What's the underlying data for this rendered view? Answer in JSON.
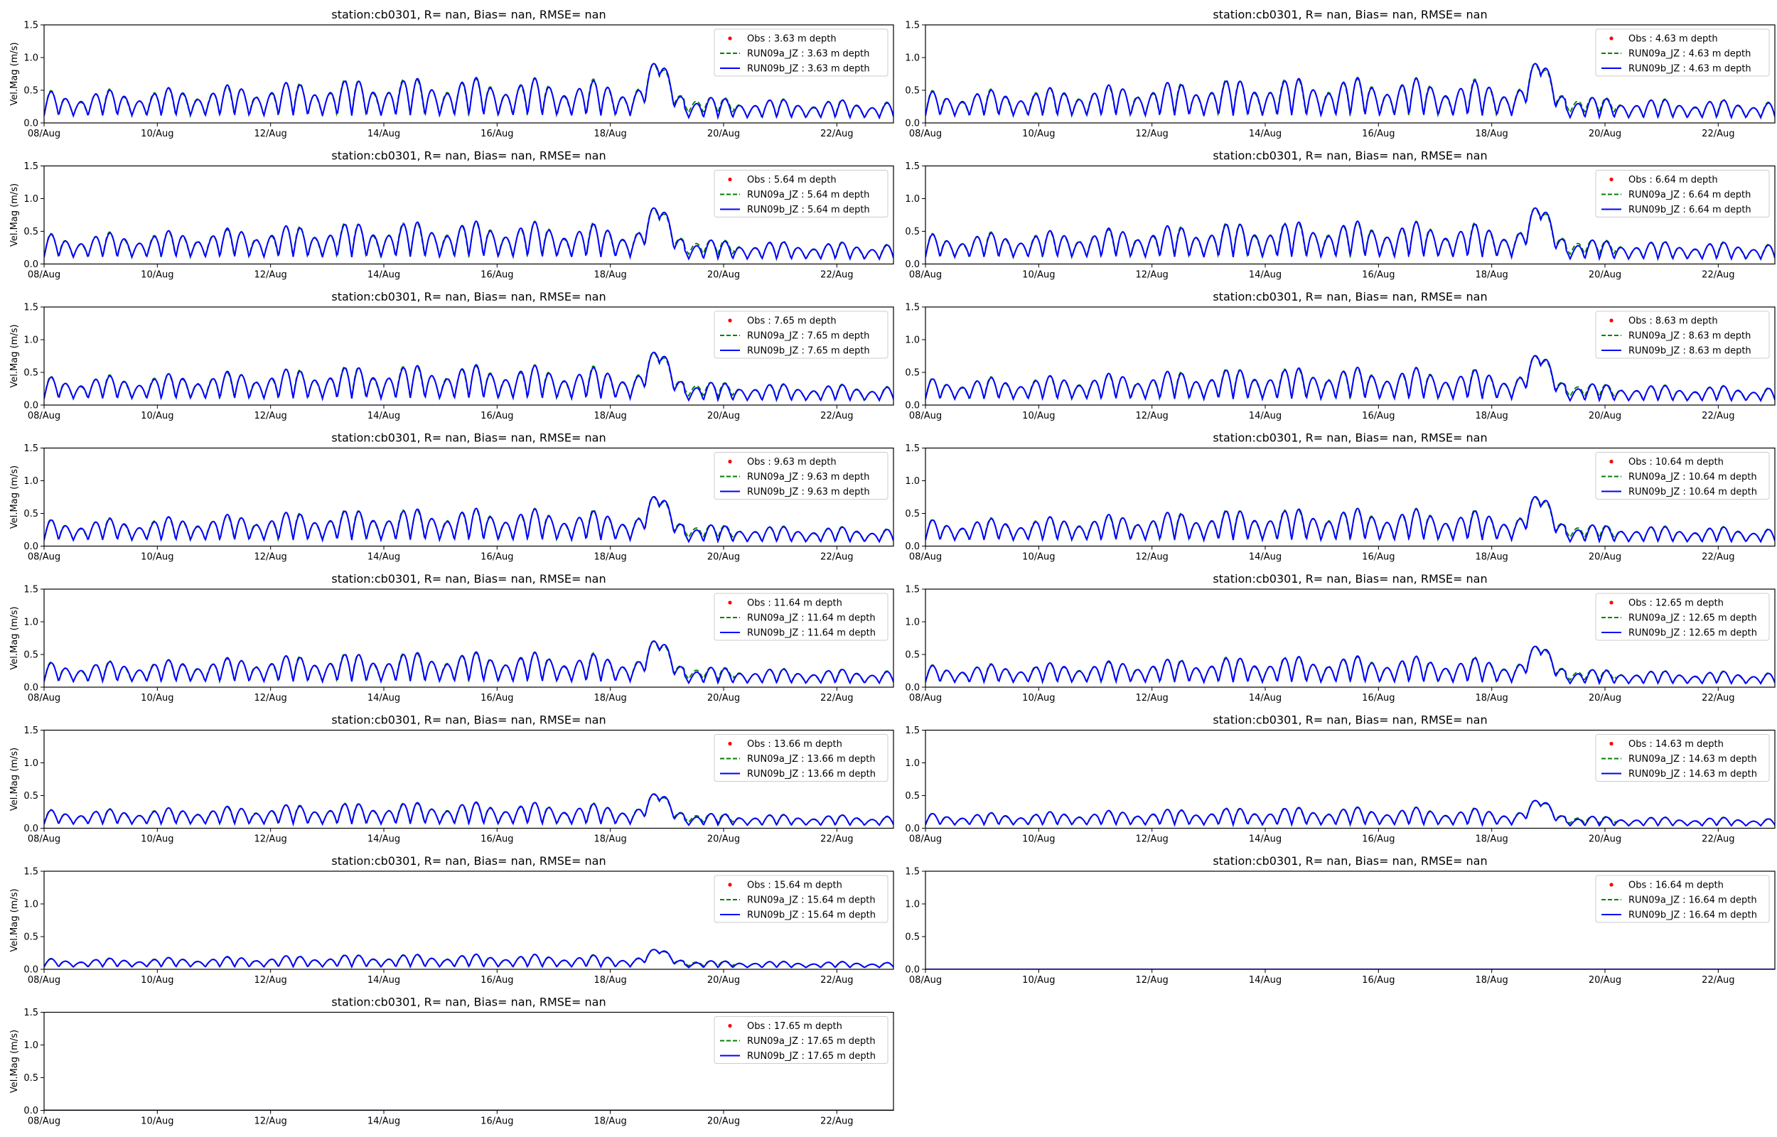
{
  "figure": {
    "colors": {
      "obs": "#ff0000",
      "run09a": "#008000",
      "run09b": "#0000ff",
      "frame": "#000000",
      "legend_border": "#cccccc"
    }
  },
  "chart_data": [
    {
      "type": "line",
      "title": "station:cb0301, R=   nan, Bias=    nan, RMSE=    nan",
      "ylabel": "Vel.Mag (m/s)",
      "xlabel": "",
      "x_ticks": [
        "08/Aug",
        "10/Aug",
        "12/Aug",
        "14/Aug",
        "16/Aug",
        "18/Aug",
        "20/Aug",
        "22/Aug"
      ],
      "xlim": [
        "2023-08-08",
        "2023-08-23"
      ],
      "ylim": [
        0,
        1.5
      ],
      "y_ticks": [
        0.0,
        0.5,
        1.0,
        1.5
      ],
      "y_tick_labels": [
        "0.0",
        "0.5",
        "1.0",
        "1.5"
      ],
      "grid": false,
      "legend_position": "top-right",
      "depth_m": 3.63,
      "peak_mps": 0.9,
      "series": [
        {
          "name": "Obs : 3.63 m depth",
          "style": "points",
          "values": []
        },
        {
          "name": "RUN09a_JZ : 3.63 m depth",
          "style": "dashed"
        },
        {
          "name": "RUN09b_JZ : 3.63 m depth",
          "style": "solid"
        }
      ]
    },
    {
      "type": "line",
      "title": "station:cb0301, R=   nan, Bias=    nan, RMSE=    nan",
      "ylabel": "",
      "xlabel": "",
      "x_ticks": [
        "08/Aug",
        "10/Aug",
        "12/Aug",
        "14/Aug",
        "16/Aug",
        "18/Aug",
        "20/Aug",
        "22/Aug"
      ],
      "xlim": [
        "2023-08-08",
        "2023-08-23"
      ],
      "ylim": [
        0,
        1.5
      ],
      "y_ticks": [
        0.0,
        0.5,
        1.0,
        1.5
      ],
      "y_tick_labels": [
        "0.0",
        "0.5",
        "1.0",
        "1.5"
      ],
      "grid": false,
      "legend_position": "top-right",
      "depth_m": 4.63,
      "peak_mps": 0.9,
      "series": [
        {
          "name": "Obs : 4.63 m depth",
          "style": "points",
          "values": []
        },
        {
          "name": "RUN09a_JZ : 4.63 m depth",
          "style": "dashed"
        },
        {
          "name": "RUN09b_JZ : 4.63 m depth",
          "style": "solid"
        }
      ]
    },
    {
      "type": "line",
      "title": "station:cb0301, R=   nan, Bias=    nan, RMSE=    nan",
      "ylabel": "Vel.Mag (m/s)",
      "xlabel": "",
      "x_ticks": [
        "08/Aug",
        "10/Aug",
        "12/Aug",
        "14/Aug",
        "16/Aug",
        "18/Aug",
        "20/Aug",
        "22/Aug"
      ],
      "xlim": [
        "2023-08-08",
        "2023-08-23"
      ],
      "ylim": [
        0,
        1.5
      ],
      "y_ticks": [
        0.0,
        0.5,
        1.0,
        1.5
      ],
      "y_tick_labels": [
        "0.0",
        "0.5",
        "1.0",
        "1.5"
      ],
      "grid": false,
      "legend_position": "top-right",
      "depth_m": 5.64,
      "peak_mps": 0.85,
      "series": [
        {
          "name": "Obs : 5.64 m depth",
          "style": "points",
          "values": []
        },
        {
          "name": "RUN09a_JZ : 5.64 m depth",
          "style": "dashed"
        },
        {
          "name": "RUN09b_JZ : 5.64 m depth",
          "style": "solid"
        }
      ]
    },
    {
      "type": "line",
      "title": "station:cb0301, R=   nan, Bias=    nan, RMSE=    nan",
      "ylabel": "",
      "xlabel": "",
      "x_ticks": [
        "08/Aug",
        "10/Aug",
        "12/Aug",
        "14/Aug",
        "16/Aug",
        "18/Aug",
        "20/Aug",
        "22/Aug"
      ],
      "xlim": [
        "2023-08-08",
        "2023-08-23"
      ],
      "ylim": [
        0,
        1.5
      ],
      "y_ticks": [
        0.0,
        0.5,
        1.0,
        1.5
      ],
      "y_tick_labels": [
        "0.0",
        "0.5",
        "1.0",
        "1.5"
      ],
      "grid": false,
      "legend_position": "top-right",
      "depth_m": 6.64,
      "peak_mps": 0.85,
      "series": [
        {
          "name": "Obs : 6.64 m depth",
          "style": "points",
          "values": []
        },
        {
          "name": "RUN09a_JZ : 6.64 m depth",
          "style": "dashed"
        },
        {
          "name": "RUN09b_JZ : 6.64 m depth",
          "style": "solid"
        }
      ]
    },
    {
      "type": "line",
      "title": "station:cb0301, R=   nan, Bias=    nan, RMSE=    nan",
      "ylabel": "Vel.Mag (m/s)",
      "xlabel": "",
      "x_ticks": [
        "08/Aug",
        "10/Aug",
        "12/Aug",
        "14/Aug",
        "16/Aug",
        "18/Aug",
        "20/Aug",
        "22/Aug"
      ],
      "xlim": [
        "2023-08-08",
        "2023-08-23"
      ],
      "ylim": [
        0,
        1.5
      ],
      "y_ticks": [
        0.0,
        0.5,
        1.0,
        1.5
      ],
      "y_tick_labels": [
        "0.0",
        "0.5",
        "1.0",
        "1.5"
      ],
      "grid": false,
      "legend_position": "top-right",
      "depth_m": 7.65,
      "peak_mps": 0.8,
      "series": [
        {
          "name": "Obs : 7.65 m depth",
          "style": "points",
          "values": []
        },
        {
          "name": "RUN09a_JZ : 7.65 m depth",
          "style": "dashed"
        },
        {
          "name": "RUN09b_JZ : 7.65 m depth",
          "style": "solid"
        }
      ]
    },
    {
      "type": "line",
      "title": "station:cb0301, R=   nan, Bias=    nan, RMSE=    nan",
      "ylabel": "",
      "xlabel": "",
      "x_ticks": [
        "08/Aug",
        "10/Aug",
        "12/Aug",
        "14/Aug",
        "16/Aug",
        "18/Aug",
        "20/Aug",
        "22/Aug"
      ],
      "xlim": [
        "2023-08-08",
        "2023-08-23"
      ],
      "ylim": [
        0,
        1.5
      ],
      "y_ticks": [
        0.0,
        0.5,
        1.0,
        1.5
      ],
      "y_tick_labels": [
        "0.0",
        "0.5",
        "1.0",
        "1.5"
      ],
      "grid": false,
      "legend_position": "top-right",
      "depth_m": 8.63,
      "peak_mps": 0.75,
      "series": [
        {
          "name": "Obs : 8.63 m depth",
          "style": "points",
          "values": []
        },
        {
          "name": "RUN09a_JZ : 8.63 m depth",
          "style": "dashed"
        },
        {
          "name": "RUN09b_JZ : 8.63 m depth",
          "style": "solid"
        }
      ]
    },
    {
      "type": "line",
      "title": "station:cb0301, R=   nan, Bias=    nan, RMSE=    nan",
      "ylabel": "Vel.Mag (m/s)",
      "xlabel": "",
      "x_ticks": [
        "08/Aug",
        "10/Aug",
        "12/Aug",
        "14/Aug",
        "16/Aug",
        "18/Aug",
        "20/Aug",
        "22/Aug"
      ],
      "xlim": [
        "2023-08-08",
        "2023-08-23"
      ],
      "ylim": [
        0,
        1.5
      ],
      "y_ticks": [
        0.0,
        0.5,
        1.0,
        1.5
      ],
      "y_tick_labels": [
        "0.0",
        "0.5",
        "1.0",
        "1.5"
      ],
      "grid": false,
      "legend_position": "top-right",
      "depth_m": 9.63,
      "peak_mps": 0.75,
      "series": [
        {
          "name": "Obs : 9.63 m depth",
          "style": "points",
          "values": []
        },
        {
          "name": "RUN09a_JZ : 9.63 m depth",
          "style": "dashed"
        },
        {
          "name": "RUN09b_JZ : 9.63 m depth",
          "style": "solid"
        }
      ]
    },
    {
      "type": "line",
      "title": "station:cb0301, R=   nan, Bias=    nan, RMSE=    nan",
      "ylabel": "",
      "xlabel": "",
      "x_ticks": [
        "08/Aug",
        "10/Aug",
        "12/Aug",
        "14/Aug",
        "16/Aug",
        "18/Aug",
        "20/Aug",
        "22/Aug"
      ],
      "xlim": [
        "2023-08-08",
        "2023-08-23"
      ],
      "ylim": [
        0,
        1.5
      ],
      "y_ticks": [
        0.0,
        0.5,
        1.0,
        1.5
      ],
      "y_tick_labels": [
        "0.0",
        "0.5",
        "1.0",
        "1.5"
      ],
      "grid": false,
      "legend_position": "top-right",
      "depth_m": 10.64,
      "peak_mps": 0.75,
      "series": [
        {
          "name": "Obs : 10.64 m depth",
          "style": "points",
          "values": []
        },
        {
          "name": "RUN09a_JZ : 10.64 m depth",
          "style": "dashed"
        },
        {
          "name": "RUN09b_JZ : 10.64 m depth",
          "style": "solid"
        }
      ]
    },
    {
      "type": "line",
      "title": "station:cb0301, R=   nan, Bias=    nan, RMSE=    nan",
      "ylabel": "Vel.Mag (m/s)",
      "xlabel": "",
      "x_ticks": [
        "08/Aug",
        "10/Aug",
        "12/Aug",
        "14/Aug",
        "16/Aug",
        "18/Aug",
        "20/Aug",
        "22/Aug"
      ],
      "xlim": [
        "2023-08-08",
        "2023-08-23"
      ],
      "ylim": [
        0,
        1.5
      ],
      "y_ticks": [
        0.0,
        0.5,
        1.0,
        1.5
      ],
      "y_tick_labels": [
        "0.0",
        "0.5",
        "1.0",
        "1.5"
      ],
      "grid": false,
      "legend_position": "top-right",
      "depth_m": 11.64,
      "peak_mps": 0.7,
      "series": [
        {
          "name": "Obs : 11.64 m depth",
          "style": "points",
          "values": []
        },
        {
          "name": "RUN09a_JZ : 11.64 m depth",
          "style": "dashed"
        },
        {
          "name": "RUN09b_JZ : 11.64 m depth",
          "style": "solid"
        }
      ]
    },
    {
      "type": "line",
      "title": "station:cb0301, R=   nan, Bias=    nan, RMSE=    nan",
      "ylabel": "",
      "xlabel": "",
      "x_ticks": [
        "08/Aug",
        "10/Aug",
        "12/Aug",
        "14/Aug",
        "16/Aug",
        "18/Aug",
        "20/Aug",
        "22/Aug"
      ],
      "xlim": [
        "2023-08-08",
        "2023-08-23"
      ],
      "ylim": [
        0,
        1.5
      ],
      "y_ticks": [
        0.0,
        0.5,
        1.0,
        1.5
      ],
      "y_tick_labels": [
        "0.0",
        "0.5",
        "1.0",
        "1.5"
      ],
      "grid": false,
      "legend_position": "top-right",
      "depth_m": 12.65,
      "peak_mps": 0.62,
      "series": [
        {
          "name": "Obs : 12.65 m depth",
          "style": "points",
          "values": []
        },
        {
          "name": "RUN09a_JZ : 12.65 m depth",
          "style": "dashed"
        },
        {
          "name": "RUN09b_JZ : 12.65 m depth",
          "style": "solid"
        }
      ]
    },
    {
      "type": "line",
      "title": "station:cb0301, R=   nan, Bias=    nan, RMSE=    nan",
      "ylabel": "Vel.Mag (m/s)",
      "xlabel": "",
      "x_ticks": [
        "08/Aug",
        "10/Aug",
        "12/Aug",
        "14/Aug",
        "16/Aug",
        "18/Aug",
        "20/Aug",
        "22/Aug"
      ],
      "xlim": [
        "2023-08-08",
        "2023-08-23"
      ],
      "ylim": [
        0,
        1.5
      ],
      "y_ticks": [
        0.0,
        0.5,
        1.0,
        1.5
      ],
      "y_tick_labels": [
        "0.0",
        "0.5",
        "1.0",
        "1.5"
      ],
      "grid": false,
      "legend_position": "top-right",
      "depth_m": 13.66,
      "peak_mps": 0.52,
      "series": [
        {
          "name": "Obs : 13.66 m depth",
          "style": "points",
          "values": []
        },
        {
          "name": "RUN09a_JZ : 13.66 m depth",
          "style": "dashed"
        },
        {
          "name": "RUN09b_JZ : 13.66 m depth",
          "style": "solid"
        }
      ]
    },
    {
      "type": "line",
      "title": "station:cb0301, R=   nan, Bias=    nan, RMSE=    nan",
      "ylabel": "",
      "xlabel": "",
      "x_ticks": [
        "08/Aug",
        "10/Aug",
        "12/Aug",
        "14/Aug",
        "16/Aug",
        "18/Aug",
        "20/Aug",
        "22/Aug"
      ],
      "xlim": [
        "2023-08-08",
        "2023-08-23"
      ],
      "ylim": [
        0,
        1.5
      ],
      "y_ticks": [
        0.0,
        0.5,
        1.0,
        1.5
      ],
      "y_tick_labels": [
        "0.0",
        "0.5",
        "1.0",
        "1.5"
      ],
      "grid": false,
      "legend_position": "top-right",
      "depth_m": 14.63,
      "peak_mps": 0.42,
      "series": [
        {
          "name": "Obs : 14.63 m depth",
          "style": "points",
          "values": []
        },
        {
          "name": "RUN09a_JZ : 14.63 m depth",
          "style": "dashed"
        },
        {
          "name": "RUN09b_JZ : 14.63 m depth",
          "style": "solid"
        }
      ]
    },
    {
      "type": "line",
      "title": "station:cb0301, R=   nan, Bias=    nan, RMSE=    nan",
      "ylabel": "Vel.Mag (m/s)",
      "xlabel": "",
      "x_ticks": [
        "08/Aug",
        "10/Aug",
        "12/Aug",
        "14/Aug",
        "16/Aug",
        "18/Aug",
        "20/Aug",
        "22/Aug"
      ],
      "xlim": [
        "2023-08-08",
        "2023-08-23"
      ],
      "ylim": [
        0,
        1.5
      ],
      "y_ticks": [
        0.0,
        0.5,
        1.0,
        1.5
      ],
      "y_tick_labels": [
        "0.0",
        "0.5",
        "1.0",
        "1.5"
      ],
      "grid": false,
      "legend_position": "top-right",
      "depth_m": 15.64,
      "peak_mps": 0.3,
      "series": [
        {
          "name": "Obs : 15.64 m depth",
          "style": "points",
          "values": []
        },
        {
          "name": "RUN09a_JZ : 15.64 m depth",
          "style": "dashed"
        },
        {
          "name": "RUN09b_JZ : 15.64 m depth",
          "style": "solid"
        }
      ]
    },
    {
      "type": "line",
      "title": "station:cb0301, R=   nan, Bias=    nan, RMSE=    nan",
      "ylabel": "",
      "xlabel": "",
      "x_ticks": [
        "08/Aug",
        "10/Aug",
        "12/Aug",
        "14/Aug",
        "16/Aug",
        "18/Aug",
        "20/Aug",
        "22/Aug"
      ],
      "xlim": [
        "2023-08-08",
        "2023-08-23"
      ],
      "ylim": [
        0,
        1.5
      ],
      "y_ticks": [
        0.0,
        0.5,
        1.0,
        1.5
      ],
      "y_tick_labels": [
        "0.0",
        "0.5",
        "1.0",
        "1.5"
      ],
      "grid": false,
      "legend_position": "top-right",
      "depth_m": 16.64,
      "peak_mps": 0,
      "series": [
        {
          "name": "Obs : 16.64 m depth",
          "style": "points",
          "values": []
        },
        {
          "name": "RUN09a_JZ : 16.64 m depth",
          "style": "dashed"
        },
        {
          "name": "RUN09b_JZ : 16.64 m depth",
          "style": "solid"
        }
      ]
    },
    {
      "type": "line",
      "title": "station:cb0301, R=   nan, Bias=    nan, RMSE=    nan",
      "ylabel": "Vel.Mag (m/s)",
      "xlabel": "",
      "x_ticks": [
        "08/Aug",
        "10/Aug",
        "12/Aug",
        "14/Aug",
        "16/Aug",
        "18/Aug",
        "20/Aug",
        "22/Aug"
      ],
      "xlim": [
        "2023-08-08",
        "2023-08-23"
      ],
      "ylim": [
        0,
        1.5
      ],
      "y_ticks": [
        0.0,
        0.5,
        1.0,
        1.5
      ],
      "y_tick_labels": [
        "0.0",
        "0.5",
        "1.0",
        "1.5"
      ],
      "grid": false,
      "legend_position": "top-right",
      "depth_m": 17.65,
      "peak_mps": 0,
      "series": [
        {
          "name": "Obs : 17.65 m depth",
          "style": "points",
          "values": []
        },
        {
          "name": "RUN09a_JZ : 17.65 m depth",
          "style": "dashed"
        },
        {
          "name": "RUN09b_JZ : 17.65 m depth",
          "style": "solid"
        }
      ]
    }
  ]
}
